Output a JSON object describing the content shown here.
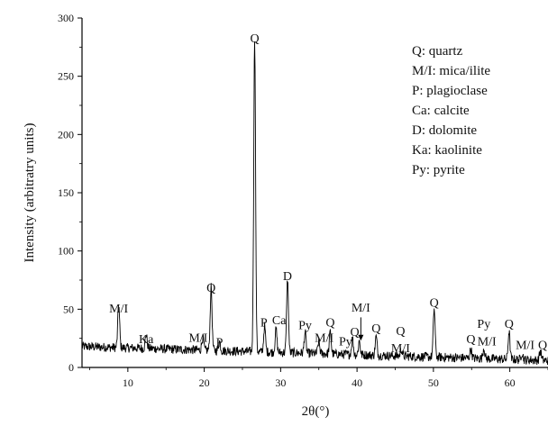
{
  "chart_data": {
    "type": "line",
    "xlabel": "2θ(°)",
    "ylabel": "Intensity (arbitratry units)",
    "xlim": [
      4,
      65
    ],
    "ylim": [
      0,
      300
    ],
    "x_ticks": [
      10,
      20,
      30,
      40,
      50,
      60
    ],
    "y_ticks": [
      0,
      50,
      100,
      150,
      200,
      250,
      300
    ],
    "grid": false,
    "legend_position": "top-right",
    "line_color": "#000000",
    "legend_entries": [
      "Q: quartz",
      "M/I: mica/ilite",
      "P: plagioclase",
      "Ca: calcite",
      "D: dolomite",
      "Ka: kaolinite",
      "Py: pyrite"
    ],
    "peaks": [
      {
        "x": 8.8,
        "y": 43
      },
      {
        "x": 12.4,
        "y": 18
      },
      {
        "x": 19.8,
        "y": 17
      },
      {
        "x": 20.9,
        "y": 60
      },
      {
        "x": 22.0,
        "y": 14
      },
      {
        "x": 26.6,
        "y": 275
      },
      {
        "x": 27.9,
        "y": 28
      },
      {
        "x": 29.4,
        "y": 26
      },
      {
        "x": 30.9,
        "y": 70
      },
      {
        "x": 33.2,
        "y": 24
      },
      {
        "x": 35.0,
        "y": 16
      },
      {
        "x": 36.5,
        "y": 25
      },
      {
        "x": 39.4,
        "y": 20
      },
      {
        "x": 40.3,
        "y": 18
      },
      {
        "x": 42.5,
        "y": 22
      },
      {
        "x": 45.8,
        "y": 12
      },
      {
        "x": 50.1,
        "y": 48
      },
      {
        "x": 54.9,
        "y": 14
      },
      {
        "x": 56.6,
        "y": 15
      },
      {
        "x": 59.9,
        "y": 30
      },
      {
        "x": 61.6,
        "y": 12
      },
      {
        "x": 64.0,
        "y": 14
      }
    ],
    "baseline": {
      "start": 18,
      "end": 6
    },
    "annotations": [
      {
        "text": "M/I",
        "x": 8.8,
        "y": 47
      },
      {
        "text": "Ka",
        "x": 12.4,
        "y": 21
      },
      {
        "text": "M/I",
        "x": 19.2,
        "y": 22
      },
      {
        "text": "Q",
        "x": 20.9,
        "y": 65
      },
      {
        "text": "P",
        "x": 22.0,
        "y": 18
      },
      {
        "text": "Q",
        "x": 26.6,
        "y": 279
      },
      {
        "text": "P",
        "x": 27.8,
        "y": 35
      },
      {
        "text": "Ca",
        "x": 29.8,
        "y": 37
      },
      {
        "text": "D",
        "x": 30.9,
        "y": 75
      },
      {
        "text": "Py",
        "x": 33.2,
        "y": 33
      },
      {
        "text": "M/I",
        "x": 35.7,
        "y": 22
      },
      {
        "text": "Q",
        "x": 36.5,
        "y": 35
      },
      {
        "text": "Py",
        "x": 38.5,
        "y": 19
      },
      {
        "text": "Q",
        "x": 39.7,
        "y": 27
      },
      {
        "text": "M/I",
        "x": 40.5,
        "y": 48
      },
      {
        "text": "Q",
        "x": 42.5,
        "y": 30
      },
      {
        "text": "Q",
        "x": 45.7,
        "y": 28
      },
      {
        "text": "M/I",
        "x": 45.7,
        "y": 13
      },
      {
        "text": "Q",
        "x": 50.1,
        "y": 52
      },
      {
        "text": "Py",
        "x": 56.6,
        "y": 34
      },
      {
        "text": "Q",
        "x": 54.9,
        "y": 21
      },
      {
        "text": "M/I",
        "x": 57.0,
        "y": 19
      },
      {
        "text": "Q",
        "x": 59.9,
        "y": 34
      },
      {
        "text": "M/I",
        "x": 62.0,
        "y": 16
      },
      {
        "text": "Q",
        "x": 64.3,
        "y": 16
      }
    ]
  }
}
